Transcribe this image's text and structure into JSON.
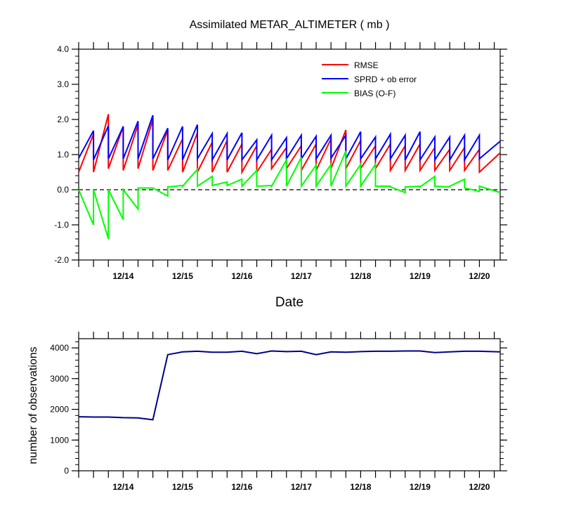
{
  "chart_data": [
    {
      "type": "line",
      "title": "Assimilated METAR_ALTIMETER ( mb )",
      "xlabel": "Date",
      "ylabel": "",
      "ylim": [
        -2.0,
        4.0
      ],
      "yticks": [
        "-2.0",
        "-1.0",
        "0.0",
        "1.0",
        "2.0",
        "3.0",
        "4.0"
      ],
      "xtick_labels": [
        "12/14",
        "12/15",
        "12/16",
        "12/17",
        "12/18",
        "12/19",
        "12/20"
      ],
      "xlim": [
        13.25,
        20.35
      ],
      "legend_position": "top-right",
      "zero_line": "dashed",
      "series": [
        {
          "name": "RMSE",
          "color": "#ff0000",
          "x": [
            13.25,
            13.5,
            13.5,
            13.75,
            13.75,
            14.0,
            14.0,
            14.25,
            14.25,
            14.5,
            14.5,
            14.75,
            14.75,
            15.0,
            15.0,
            15.25,
            15.25,
            15.5,
            15.5,
            15.75,
            15.75,
            16.0,
            16.0,
            16.25,
            16.25,
            16.5,
            16.5,
            16.75,
            16.75,
            17.0,
            17.0,
            17.25,
            17.25,
            17.5,
            17.5,
            17.75,
            17.75,
            18.0,
            18.0,
            18.25,
            18.25,
            18.5,
            18.5,
            18.75,
            18.75,
            19.0,
            19.0,
            19.25,
            19.25,
            19.5,
            19.5,
            19.75,
            19.75,
            20.0,
            20.0,
            20.35
          ],
          "values": [
            0.5,
            1.58,
            0.5,
            2.15,
            0.6,
            1.8,
            0.55,
            1.85,
            0.6,
            2.0,
            0.55,
            1.7,
            0.55,
            1.45,
            0.5,
            1.62,
            0.5,
            1.35,
            0.5,
            1.4,
            0.5,
            1.3,
            0.5,
            1.25,
            0.5,
            1.15,
            0.6,
            1.2,
            0.6,
            1.25,
            0.55,
            1.3,
            0.55,
            1.45,
            0.6,
            1.7,
            0.6,
            1.4,
            0.6,
            1.25,
            0.6,
            1.3,
            0.55,
            1.25,
            0.55,
            1.3,
            0.55,
            1.2,
            0.55,
            1.15,
            0.55,
            1.2,
            0.55,
            1.15,
            0.5,
            1.05
          ]
        },
        {
          "name": "SPRD + ob error",
          "color": "#0000ff",
          "x": [
            13.25,
            13.5,
            13.5,
            13.75,
            13.75,
            14.0,
            14.0,
            14.25,
            14.25,
            14.5,
            14.5,
            14.75,
            14.75,
            15.0,
            15.0,
            15.25,
            15.25,
            15.5,
            15.5,
            15.75,
            15.75,
            16.0,
            16.0,
            16.25,
            16.25,
            16.5,
            16.5,
            16.75,
            16.75,
            17.0,
            17.0,
            17.25,
            17.25,
            17.5,
            17.5,
            17.75,
            17.75,
            18.0,
            18.0,
            18.25,
            18.25,
            18.5,
            18.5,
            18.75,
            18.75,
            19.0,
            19.0,
            19.25,
            19.25,
            19.5,
            19.5,
            19.75,
            19.75,
            20.0,
            20.0,
            20.35
          ],
          "values": [
            0.9,
            1.68,
            0.85,
            1.82,
            0.88,
            1.8,
            0.88,
            1.95,
            0.88,
            2.12,
            0.88,
            1.75,
            0.85,
            1.8,
            0.85,
            1.85,
            0.88,
            1.6,
            0.85,
            1.6,
            0.85,
            1.62,
            0.85,
            1.42,
            0.85,
            1.55,
            0.85,
            1.48,
            0.88,
            1.55,
            0.88,
            1.52,
            0.88,
            1.55,
            0.9,
            1.55,
            0.88,
            1.65,
            0.88,
            1.5,
            0.88,
            1.58,
            0.88,
            1.55,
            0.85,
            1.65,
            0.85,
            1.5,
            0.85,
            1.5,
            0.85,
            1.55,
            0.85,
            1.55,
            0.88,
            1.38
          ]
        },
        {
          "name": "BIAS (O-F)",
          "color": "#00ff00",
          "x": [
            13.25,
            13.5,
            13.5,
            13.75,
            13.75,
            14.0,
            14.0,
            14.25,
            14.25,
            14.5,
            14.5,
            14.75,
            14.75,
            15.0,
            15.0,
            15.25,
            15.25,
            15.5,
            15.5,
            15.75,
            15.75,
            16.0,
            16.0,
            16.25,
            16.25,
            16.5,
            16.5,
            16.75,
            16.75,
            17.0,
            17.0,
            17.25,
            17.25,
            17.5,
            17.5,
            17.75,
            17.75,
            18.0,
            18.0,
            18.25,
            18.25,
            18.5,
            18.5,
            18.75,
            18.75,
            19.0,
            19.0,
            19.25,
            19.25,
            19.5,
            19.5,
            19.75,
            19.75,
            20.0,
            20.0,
            20.35
          ],
          "values": [
            0.0,
            -1.0,
            0.0,
            -1.4,
            0.0,
            -0.85,
            0.0,
            -0.55,
            0.05,
            0.05,
            0.05,
            -0.18,
            0.08,
            0.12,
            0.1,
            0.58,
            0.1,
            0.38,
            0.12,
            0.22,
            0.12,
            0.3,
            0.1,
            0.55,
            0.1,
            0.12,
            0.1,
            0.85,
            0.1,
            0.92,
            0.1,
            0.7,
            0.1,
            0.72,
            0.1,
            1.1,
            0.1,
            0.72,
            0.1,
            0.72,
            0.1,
            0.1,
            0.08,
            -0.08,
            0.08,
            0.1,
            0.08,
            0.38,
            0.1,
            0.08,
            0.1,
            0.3,
            0.05,
            -0.05,
            0.1,
            -0.08
          ]
        }
      ]
    },
    {
      "type": "line",
      "title": "",
      "xlabel": "",
      "ylabel": "number of observations",
      "ylim": [
        0,
        4300
      ],
      "yticks": [
        "0",
        "1000",
        "2000",
        "3000",
        "4000"
      ],
      "xtick_labels": [
        "12/14",
        "12/15",
        "12/16",
        "12/17",
        "12/18",
        "12/19",
        "12/20"
      ],
      "xlim": [
        13.25,
        20.35
      ],
      "series": [
        {
          "name": "",
          "color": "#00008b",
          "x": [
            13.25,
            13.5,
            13.75,
            14.0,
            14.25,
            14.5,
            14.75,
            15.0,
            15.25,
            15.5,
            15.75,
            16.0,
            16.25,
            16.5,
            16.75,
            17.0,
            17.25,
            17.5,
            17.75,
            18.0,
            18.25,
            18.5,
            18.75,
            19.0,
            19.25,
            19.5,
            19.75,
            20.0,
            20.35
          ],
          "values": [
            1760,
            1750,
            1750,
            1730,
            1720,
            1660,
            3780,
            3870,
            3890,
            3860,
            3860,
            3890,
            3810,
            3900,
            3880,
            3890,
            3780,
            3870,
            3860,
            3880,
            3890,
            3890,
            3900,
            3900,
            3850,
            3870,
            3890,
            3890,
            3870
          ]
        }
      ]
    }
  ]
}
